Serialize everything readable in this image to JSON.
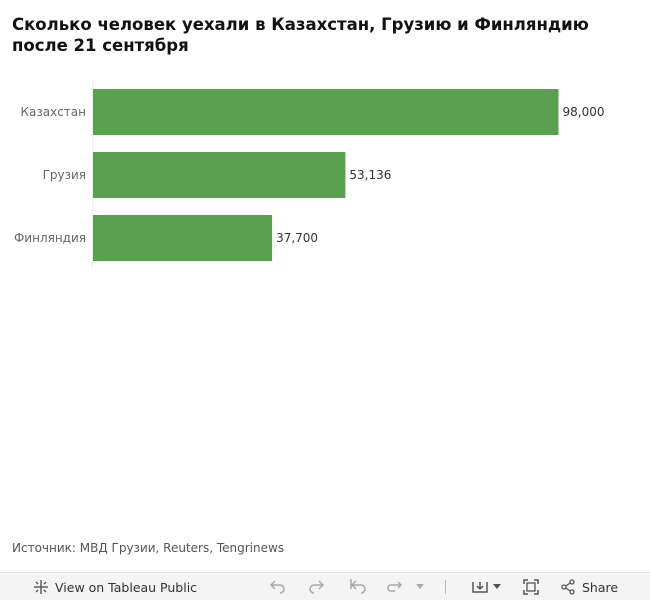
{
  "title": "Сколько человек уехали в Казахстан, Грузию и Финляндию после 21 сентября",
  "source": "Источник: МВД Грузии, Reuters, Tengrinews",
  "chart_data": {
    "type": "bar",
    "orientation": "horizontal",
    "categories": [
      "Казахстан",
      "Грузия",
      "Финляндия"
    ],
    "values": [
      98000,
      53136,
      37700
    ],
    "value_labels": [
      "98,000",
      "53,136",
      "37,700"
    ],
    "xlim": [
      0,
      100000
    ],
    "bar_color": "#59a14f",
    "grid": false
  },
  "toolbar": {
    "view_label": "View on Tableau Public",
    "share_label": "Share",
    "icons": [
      "tableau-icon",
      "undo-icon",
      "redo-icon",
      "revert-icon",
      "refresh-icon",
      "download-icon",
      "fullscreen-icon",
      "share-icon"
    ]
  }
}
